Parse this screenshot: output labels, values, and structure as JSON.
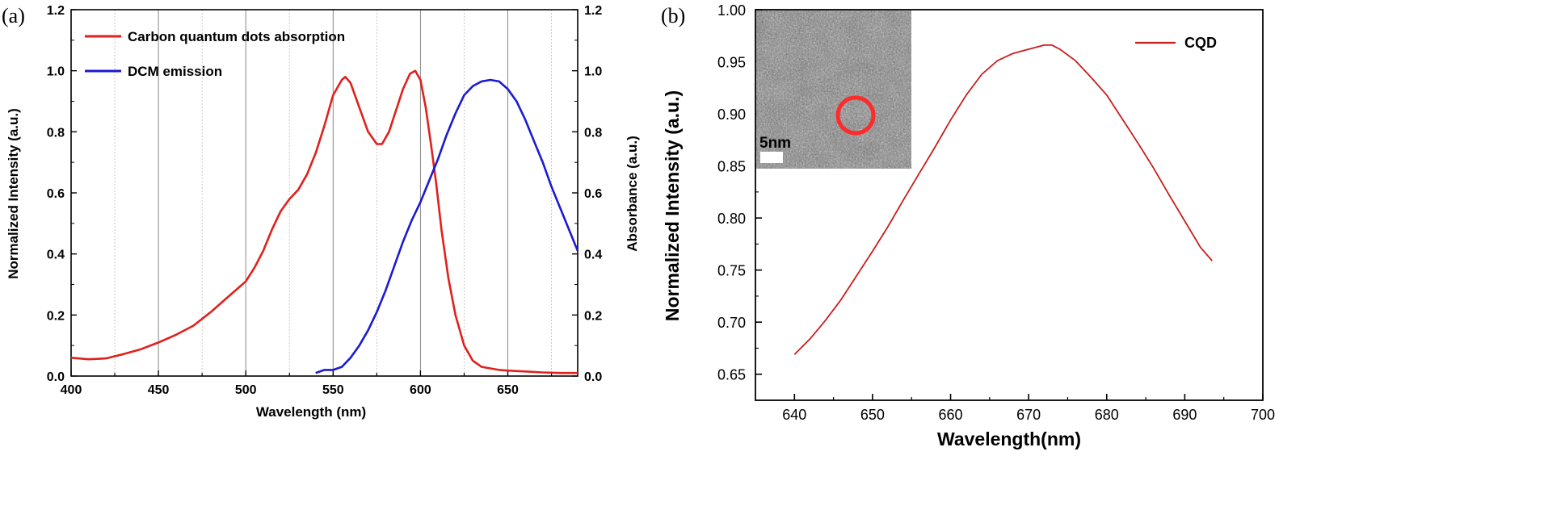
{
  "chart_data": [
    {
      "panel_label": "(a)",
      "type": "line",
      "xlabel": "Wavelength (nm)",
      "ylabel": "Normalized Intensity (a.u.)",
      "y2label": "Absorbance (a.u.)",
      "xlim": [
        400,
        690
      ],
      "ylim": [
        0,
        1.2
      ],
      "y2lim": [
        0,
        1.2
      ],
      "x_ticks": [
        "400",
        "450",
        "500",
        "550",
        "600",
        "650"
      ],
      "y_ticks": [
        "0.0",
        "0.2",
        "0.4",
        "0.6",
        "0.8",
        "1.0",
        "1.2"
      ],
      "y2_ticks": [
        "0.0",
        "0.2",
        "0.4",
        "0.6",
        "0.8",
        "1.0",
        "1.2"
      ],
      "grid": "vertical",
      "legend": "top-left",
      "series": [
        {
          "name": "Carbon quantum dots absorption",
          "color": "#e0201c",
          "x": [
            400,
            410,
            420,
            430,
            440,
            450,
            460,
            470,
            480,
            490,
            500,
            505,
            510,
            515,
            520,
            525,
            530,
            535,
            540,
            545,
            550,
            555,
            557,
            560,
            565,
            570,
            575,
            578,
            582,
            586,
            590,
            594,
            597,
            600,
            603,
            606,
            609,
            612,
            616,
            620,
            625,
            630,
            635,
            640,
            645,
            650,
            660,
            670,
            680,
            690
          ],
          "values": [
            0.06,
            0.055,
            0.058,
            0.072,
            0.088,
            0.11,
            0.135,
            0.165,
            0.21,
            0.26,
            0.31,
            0.355,
            0.41,
            0.48,
            0.54,
            0.58,
            0.61,
            0.66,
            0.73,
            0.82,
            0.92,
            0.97,
            0.98,
            0.96,
            0.88,
            0.8,
            0.76,
            0.76,
            0.8,
            0.87,
            0.94,
            0.99,
            1.0,
            0.97,
            0.88,
            0.76,
            0.63,
            0.48,
            0.32,
            0.2,
            0.1,
            0.05,
            0.03,
            0.025,
            0.02,
            0.018,
            0.015,
            0.012,
            0.01,
            0.01
          ]
        },
        {
          "name": "DCM emission",
          "color": "#1a1ad2",
          "x": [
            540,
            545,
            550,
            555,
            560,
            565,
            570,
            575,
            580,
            585,
            590,
            595,
            600,
            605,
            610,
            615,
            620,
            625,
            630,
            635,
            640,
            645,
            650,
            655,
            660,
            665,
            670,
            675,
            680,
            685,
            690
          ],
          "values": [
            0.01,
            0.02,
            0.02,
            0.03,
            0.06,
            0.1,
            0.15,
            0.21,
            0.28,
            0.36,
            0.44,
            0.51,
            0.57,
            0.64,
            0.71,
            0.79,
            0.86,
            0.92,
            0.95,
            0.965,
            0.97,
            0.965,
            0.94,
            0.9,
            0.84,
            0.77,
            0.7,
            0.62,
            0.55,
            0.48,
            0.41
          ]
        }
      ]
    },
    {
      "panel_label": "(b)",
      "type": "line",
      "xlabel": "Wavelength(nm)",
      "ylabel": "Normalized Intensity (a.u.)",
      "xlim": [
        635,
        700
      ],
      "ylim": [
        0.625,
        1.0
      ],
      "x_ticks": [
        "640",
        "650",
        "660",
        "670",
        "680",
        "690",
        "700"
      ],
      "y_ticks": [
        "0.65",
        "0.70",
        "0.75",
        "0.80",
        "0.85",
        "0.90",
        "0.95",
        "1.00"
      ],
      "legend": "top-right",
      "inset": {
        "scale_label": "5nm",
        "marker_color": "#ff2a2a"
      },
      "series": [
        {
          "name": "CQD",
          "color": "#c81e1e",
          "x": [
            640,
            642,
            644,
            646,
            648,
            650,
            652,
            654,
            656,
            658,
            660,
            662,
            664,
            666,
            668,
            670,
            672,
            673,
            674,
            676,
            678,
            680,
            682,
            684,
            686,
            688,
            690,
            692,
            693.5
          ],
          "values": [
            0.669,
            0.684,
            0.702,
            0.722,
            0.745,
            0.768,
            0.792,
            0.818,
            0.843,
            0.868,
            0.894,
            0.918,
            0.938,
            0.951,
            0.958,
            0.962,
            0.966,
            0.966,
            0.962,
            0.951,
            0.935,
            0.918,
            0.895,
            0.872,
            0.848,
            0.822,
            0.797,
            0.772,
            0.759
          ]
        }
      ]
    }
  ]
}
